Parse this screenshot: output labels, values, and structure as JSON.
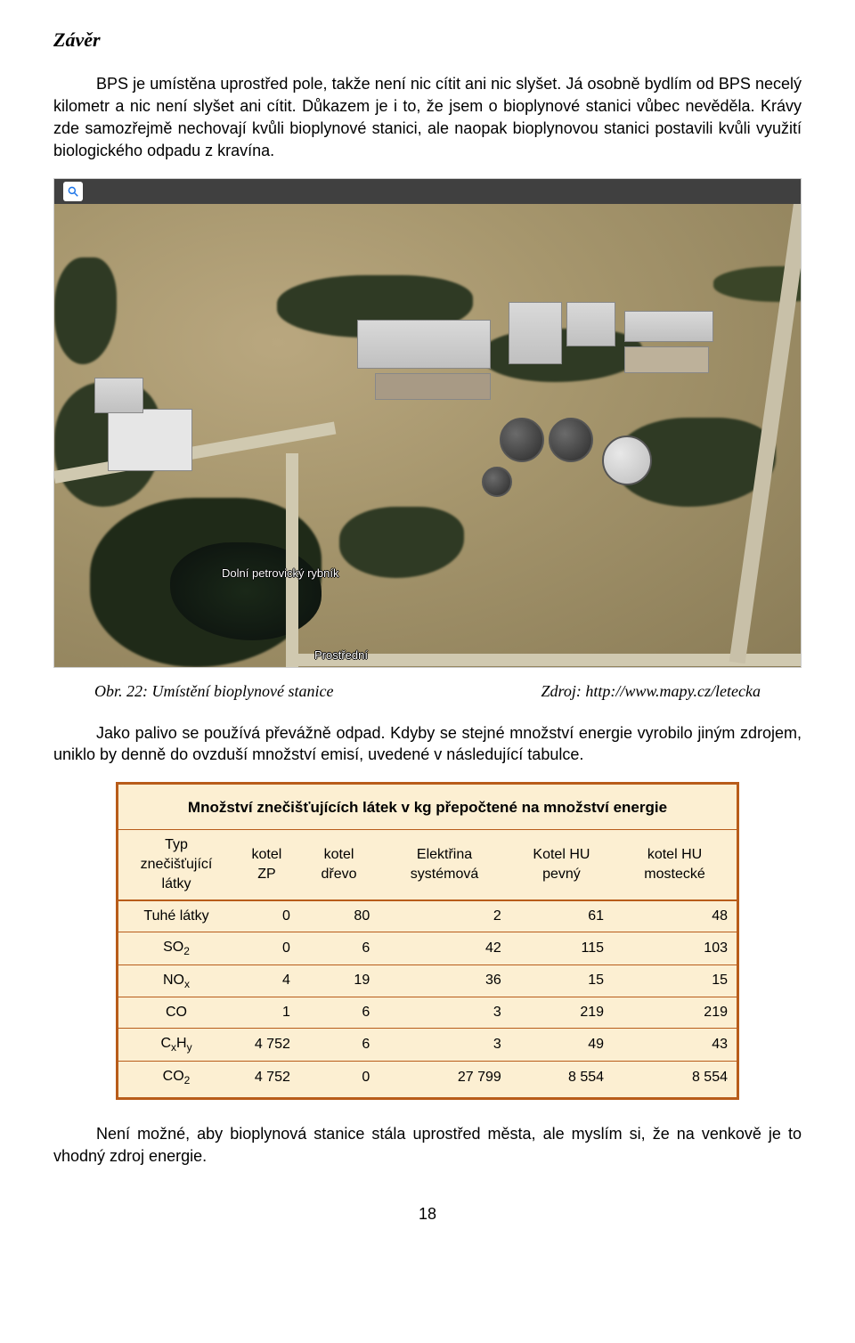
{
  "title": "Závěr",
  "p1": "BPS je umístěna uprostřed pole, takže není nic cítit ani nic slyšet. Já osobně bydlím od BPS necelý kilometr a nic není slyšet ani cítit. Důkazem je i to, že jsem o bioplynové stanici vůbec nevěděla. Krávy zde samozřejmě nechovají kvůli bioplynové stanici, ale naopak bioplynovou stanici postavili kvůli využití biologického odpadu z kravína.",
  "map": {
    "labels": {
      "pond": "Dolní petrovický rybník",
      "road": "Prostřední"
    }
  },
  "caption_left": "Obr. 22: Umístění bioplynové stanice",
  "caption_right": "Zdroj: http://www.mapy.cz/letecka",
  "p2": "Jako palivo se používá převážně odpad. Kdyby se stejné množství energie vyrobilo jiným zdrojem, uniklo by denně do ovzduší množství emisí, uvedené v následující tabulce.",
  "table": {
    "title": "Množství znečišťujících látek v kg přepočtené na množství energie",
    "headers": [
      "Typ znečišťující látky",
      "kotel ZP",
      "kotel dřevo",
      "Elektřina systémová",
      "Kotel HU pevný",
      "kotel HU mostecké"
    ],
    "rows": [
      {
        "label_html": "Tuhé látky",
        "v": [
          "0",
          "80",
          "2",
          "61",
          "48"
        ]
      },
      {
        "label_html": "SO<span class=\"sub\">2</span>",
        "v": [
          "0",
          "6",
          "42",
          "115",
          "103"
        ]
      },
      {
        "label_html": "NO<span class=\"sub\">x</span>",
        "v": [
          "4",
          "19",
          "36",
          "15",
          "15"
        ]
      },
      {
        "label_html": "CO",
        "v": [
          "1",
          "6",
          "3",
          "219",
          "219"
        ]
      },
      {
        "label_html": "C<span class=\"sub\">x</span>H<span class=\"sub\">y</span>",
        "v": [
          "4 752",
          "6",
          "3",
          "49",
          "43"
        ]
      },
      {
        "label_html": "CO<span class=\"sub\">2</span>",
        "v": [
          "4 752",
          "0",
          "27 799",
          "8 554",
          "8 554"
        ]
      }
    ],
    "colors": {
      "bg": "#fcefd2",
      "border": "#b85c1a"
    }
  },
  "p3": "Není možné, aby bioplynová stanice stála uprostřed města, ale myslím si, že na venkově je to vhodný zdroj energie.",
  "page_number": "18"
}
